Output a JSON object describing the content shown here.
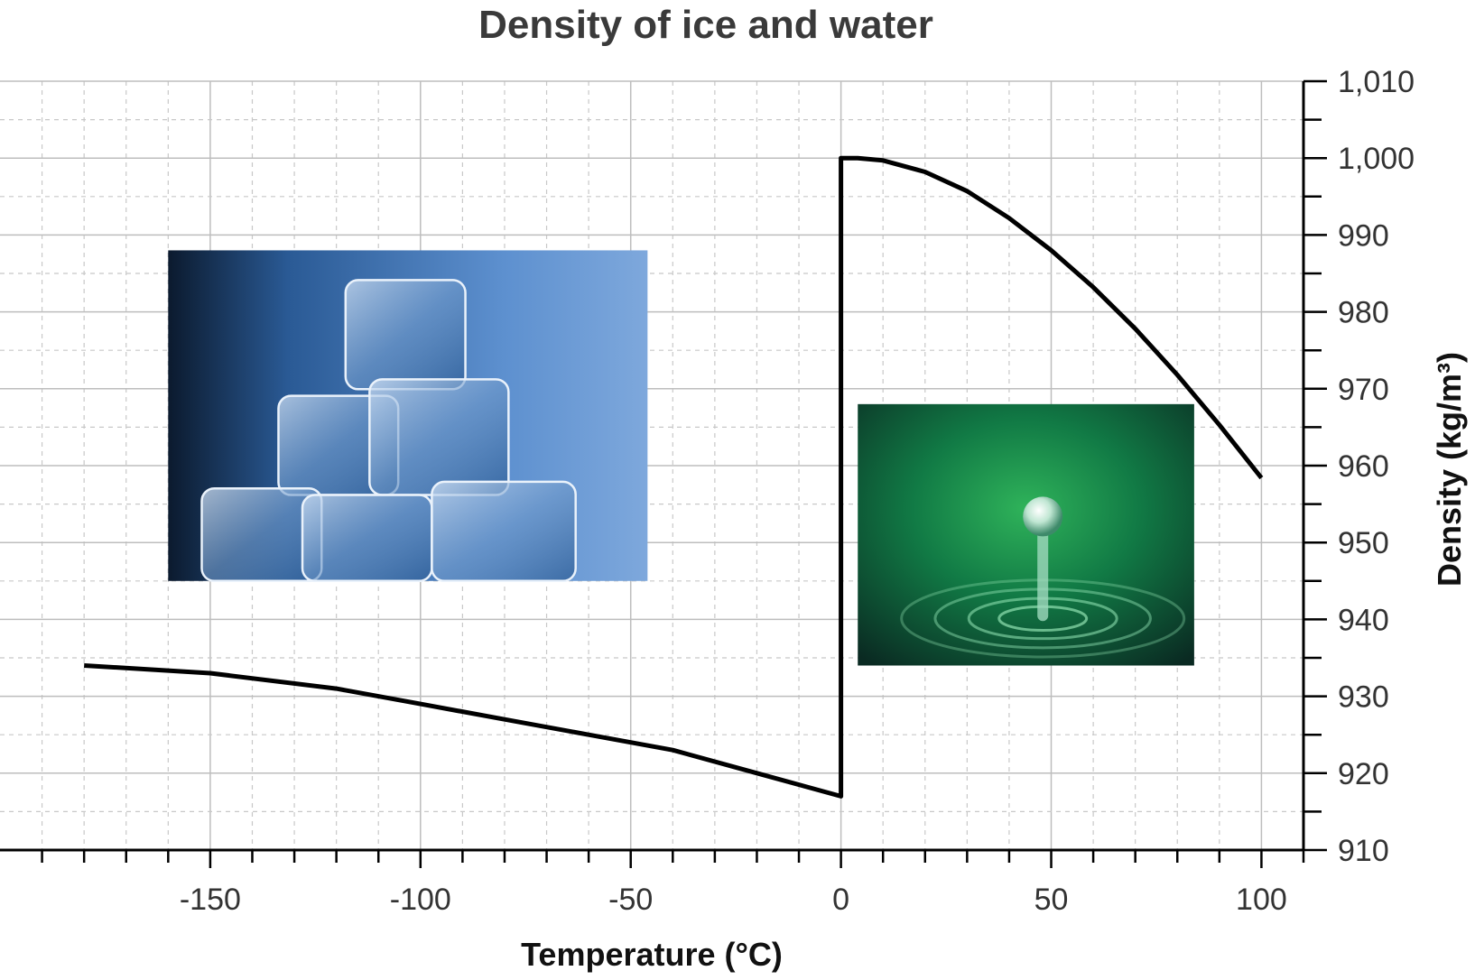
{
  "chart_data": {
    "type": "line",
    "title": "Density of ice and water",
    "xlabel": "Temperature (°C)",
    "ylabel": "Density (kg/m³)",
    "xlim": [
      -200,
      110
    ],
    "ylim": [
      910,
      1010
    ],
    "xticks": [
      -150,
      -100,
      -50,
      0,
      50,
      100
    ],
    "xtick_labels": [
      "-150",
      "-100",
      "-50",
      "0",
      "50",
      "100"
    ],
    "yticks": [
      910,
      920,
      930,
      940,
      950,
      960,
      970,
      980,
      990,
      1000,
      1010
    ],
    "ytick_labels": [
      "910",
      "920",
      "930",
      "940",
      "950",
      "960",
      "970",
      "980",
      "990",
      "1,000",
      "1,010"
    ],
    "y_axis_position": "right",
    "grid": true,
    "series": [
      {
        "name": "",
        "color": "#000000",
        "x": [
          -180,
          -150,
          -120,
          -100,
          -80,
          -60,
          -40,
          -20,
          0,
          0,
          2,
          4,
          10,
          20,
          30,
          40,
          50,
          60,
          70,
          80,
          90,
          100
        ],
        "y": [
          934.0,
          933.0,
          931.0,
          929.0,
          927.0,
          925.0,
          923.0,
          920.0,
          917.0,
          1000.0,
          1000.0,
          1000.0,
          999.7,
          998.2,
          995.7,
          992.2,
          988.0,
          983.2,
          977.8,
          971.8,
          965.3,
          958.4
        ]
      }
    ],
    "images": [
      {
        "name": "ice-cubes-photo",
        "x_range": [
          -160,
          -46
        ],
        "y_range": [
          945,
          988
        ]
      },
      {
        "name": "water-droplet-photo",
        "x_range": [
          4,
          84
        ],
        "y_range": [
          934,
          968
        ]
      }
    ]
  }
}
